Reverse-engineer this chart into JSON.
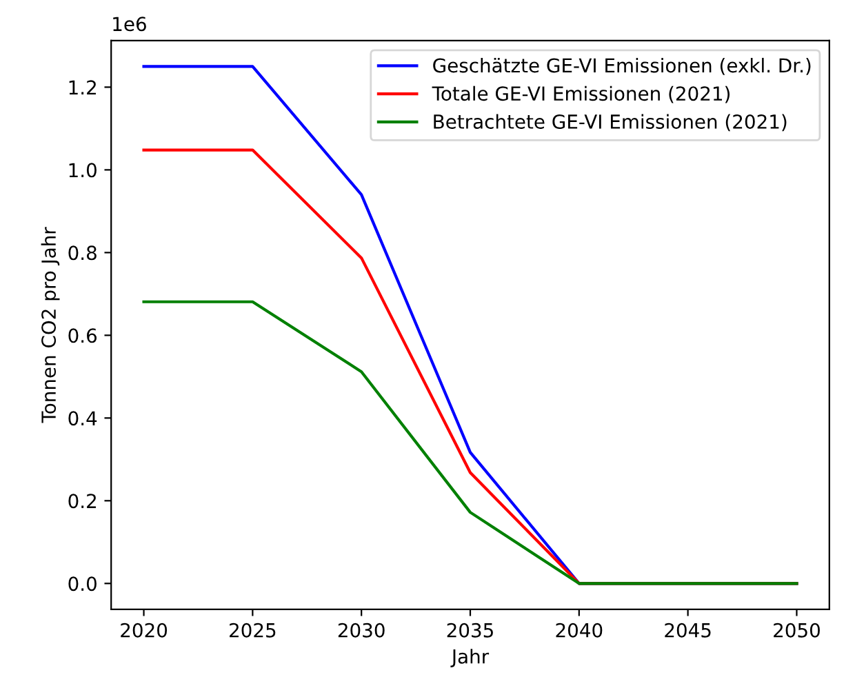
{
  "chart_data": {
    "type": "line",
    "xlabel": "Jahr",
    "ylabel": "Tonnen CO2 pro Jahr",
    "x": [
      2020,
      2025,
      2030,
      2035,
      2040,
      2045,
      2050
    ],
    "series": [
      {
        "name": "Geschätzte GE-VI Emissionen (exkl. Dr.)",
        "color": "#0000ff",
        "values": [
          1.25,
          1.25,
          0.94,
          0.317,
          0,
          0,
          0
        ]
      },
      {
        "name": "Totale GE-VI Emissionen (2021)",
        "color": "#ff0000",
        "values": [
          1.048,
          1.048,
          0.787,
          0.268,
          0,
          0,
          0
        ]
      },
      {
        "name": "Betrachtete GE-VI Emissionen (2021)",
        "color": "#008000",
        "values": [
          0.681,
          0.681,
          0.512,
          0.172,
          0,
          0,
          0
        ]
      }
    ],
    "xlim": [
      2018.5,
      2051.5
    ],
    "xticks": [
      2020,
      2025,
      2030,
      2035,
      2040,
      2045,
      2050
    ],
    "ylim": [
      -0.0625,
      1.3125
    ],
    "yticks": [
      {
        "value": 0,
        "label": "0.0"
      },
      0.2,
      0.4,
      0.6,
      0.8,
      {
        "value": 1,
        "label": "1.0"
      },
      1.2
    ],
    "annotations": [
      "1e6"
    ],
    "legend": "top right",
    "grid": false,
    "marker": "none",
    "line_style": "solid"
  }
}
